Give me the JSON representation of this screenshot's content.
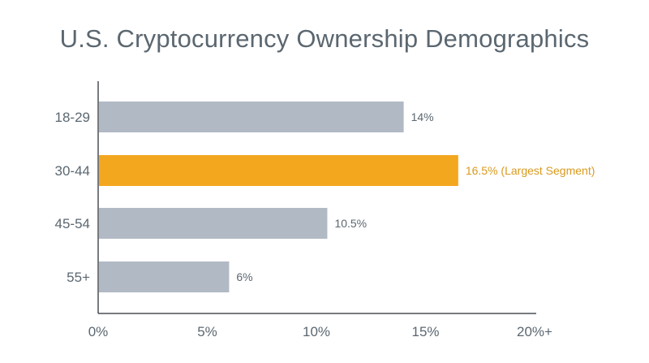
{
  "chart_data": {
    "type": "bar",
    "orientation": "horizontal",
    "title": "U.S. Cryptocurrency Ownership Demographics",
    "xlabel": "",
    "ylabel": "",
    "categories": [
      "18-29",
      "30-44",
      "45-54",
      "55+"
    ],
    "values": [
      14,
      16.5,
      10.5,
      6
    ],
    "value_labels": [
      "14%",
      "16.5% (Largest Segment)",
      "10.5%",
      "6%"
    ],
    "highlight_index": 1,
    "xlim": [
      0,
      20
    ],
    "xticks": [
      0,
      5,
      10,
      15,
      20
    ],
    "xtick_labels": [
      "0%",
      "5%",
      "10%",
      "15%",
      "20%+"
    ],
    "grid": false,
    "colors": {
      "bar": "#b1b9c4",
      "highlight_bar": "#f3a71f",
      "highlight_label": "#d99a1f",
      "label": "#5b6770",
      "axis": "#4a4f55"
    }
  }
}
